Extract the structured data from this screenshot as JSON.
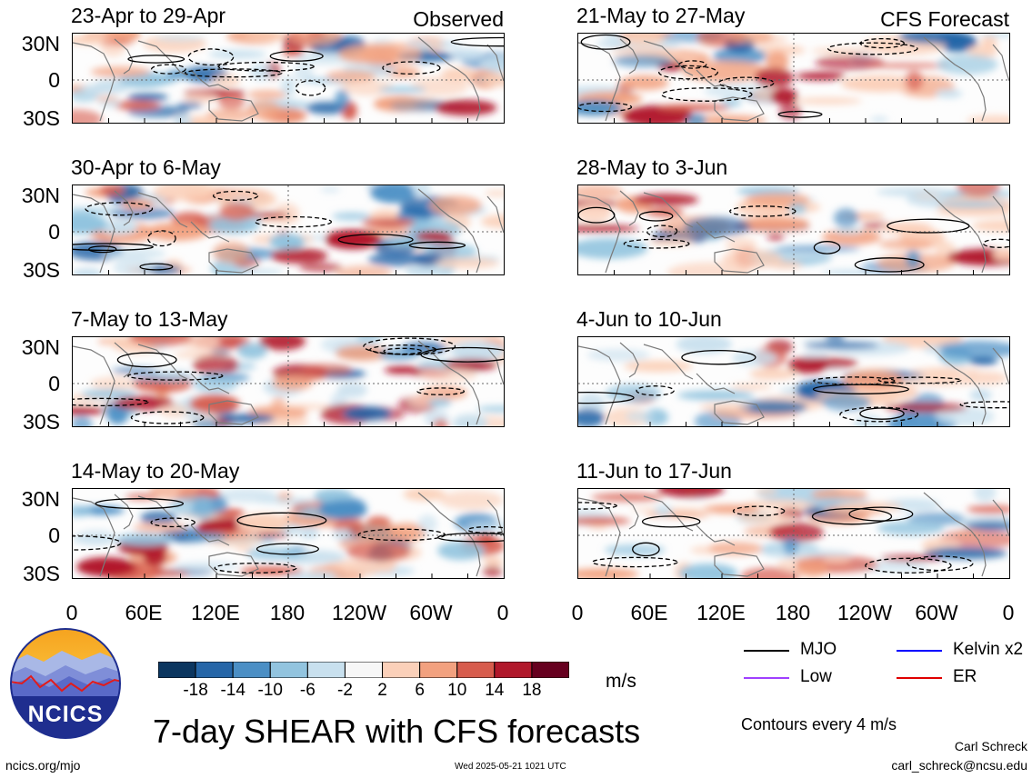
{
  "figure": {
    "title": "7-day SHEAR with CFS forecasts",
    "observed_label": "Observed",
    "forecast_label": "CFS Forecast",
    "footer_left": "ncics.org/mjo",
    "footer_center": "Wed 2025-05-21 1021 UTC",
    "author": "Carl Schreck",
    "email": "carl_schreck@ncsu.edu",
    "logo_text": "NCICS",
    "contour_note": "Contours every 4 m/s"
  },
  "panels_left": [
    {
      "title": "23-Apr to 29-Apr"
    },
    {
      "title": "30-Apr to 6-May"
    },
    {
      "title": "7-May to 13-May"
    },
    {
      "title": "14-May to 20-May"
    }
  ],
  "panels_right": [
    {
      "title": "21-May to 27-May"
    },
    {
      "title": "28-May to 3-Jun"
    },
    {
      "title": "4-Jun to 10-Jun"
    },
    {
      "title": "11-Jun to 17-Jun"
    }
  ],
  "axes": {
    "y_ticks": [
      "30N",
      "0",
      "30S"
    ],
    "x_ticks": [
      "0",
      "60E",
      "120E",
      "180",
      "120W",
      "60W",
      "0"
    ]
  },
  "colorbar": {
    "unit": "m/s",
    "ticks": [
      "-18",
      "-14",
      "-10",
      "-6",
      "-2",
      "2",
      "6",
      "10",
      "14",
      "18"
    ],
    "colors": [
      "#0b3660",
      "#2566a8",
      "#4b8fc5",
      "#92c4df",
      "#c8e0ee",
      "#f7f7f7",
      "#fbd0b9",
      "#f2a17f",
      "#d75c4d",
      "#b1182b",
      "#67001f"
    ]
  },
  "legend": [
    {
      "label": "MJO",
      "color": "#000000"
    },
    {
      "label": "Kelvin x2",
      "color": "#0000ff"
    },
    {
      "label": "Low",
      "color": "#a040ff"
    },
    {
      "label": "ER",
      "color": "#e00000"
    }
  ]
}
